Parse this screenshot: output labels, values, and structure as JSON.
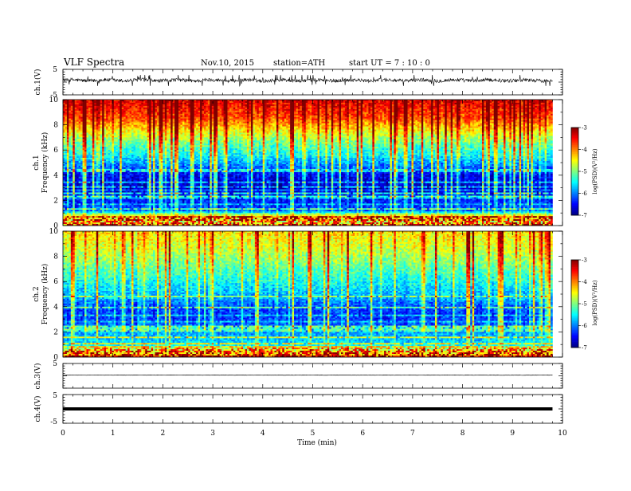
{
  "header": {
    "title": "VLF  Spectra",
    "date": "Nov.10, 2015",
    "station": "station=ATH",
    "start": "start  UT  =   7  : 10 : 0"
  },
  "chart_data": [
    {
      "type": "line",
      "name": "ch1-waveform",
      "ylabel": "ch.1(V)",
      "ylim": [
        -5,
        5
      ],
      "yticks": [
        "5",
        "-5"
      ],
      "xlim": [
        0,
        10
      ],
      "data_extent_min": 9.8,
      "mean_level_V": 0.7,
      "noise_amplitude_V": [
        -1.5,
        2.8
      ],
      "line_color": "#000000"
    },
    {
      "type": "heatmap",
      "name": "ch1-spectrogram",
      "ylabel_top": "ch.1",
      "ylabel": "Frequency  (kHz)",
      "ylim": [
        0,
        10
      ],
      "yticks": [
        "0",
        "2",
        "4",
        "6",
        "8",
        "10"
      ],
      "xlim": [
        0,
        10
      ],
      "data_extent_min": 9.8,
      "colorbar": {
        "label": "log(PSD)(V²/Hz)",
        "range": [
          -7,
          -3
        ],
        "ticks": [
          "-3",
          "-4",
          "-5",
          "-6",
          "-7"
        ]
      },
      "profile_kHz_logPSD": [
        [
          0,
          -4.3
        ],
        [
          0.4,
          -5.0
        ],
        [
          0.7,
          -4.1
        ],
        [
          1.2,
          -6.2
        ],
        [
          2.0,
          -6.4
        ],
        [
          3.0,
          -6.7
        ],
        [
          4.0,
          -6.5
        ],
        [
          4.8,
          -6.0
        ],
        [
          5.5,
          -5.5
        ],
        [
          6.5,
          -5.1
        ],
        [
          7.5,
          -4.5
        ],
        [
          8.5,
          -3.8
        ],
        [
          10,
          -3.4
        ]
      ]
    },
    {
      "type": "heatmap",
      "name": "ch2-spectrogram",
      "ylabel_top": "ch.2",
      "ylabel": "Frequency  (kHz)",
      "ylim": [
        0,
        10
      ],
      "yticks": [
        "0",
        "2",
        "4",
        "6",
        "8",
        "10"
      ],
      "xlim": [
        0,
        10
      ],
      "data_extent_min": 9.8,
      "colorbar": {
        "label": "log(PSD)(V²/Hz)",
        "range": [
          -7,
          -3
        ],
        "ticks": [
          "-3",
          "-4",
          "-5",
          "-6",
          "-7"
        ]
      },
      "profile_kHz_logPSD": [
        [
          0,
          -4.2
        ],
        [
          0.5,
          -4.6
        ],
        [
          1.0,
          -5.6
        ],
        [
          2.0,
          -5.9
        ],
        [
          3.0,
          -6.3
        ],
        [
          4.0,
          -6.2
        ],
        [
          4.7,
          -5.8
        ],
        [
          5.5,
          -5.6
        ],
        [
          6.5,
          -5.3
        ],
        [
          7.5,
          -5.0
        ],
        [
          8.5,
          -4.7
        ],
        [
          10,
          -4.4
        ]
      ]
    },
    {
      "type": "line",
      "name": "ch3-waveform",
      "ylabel": "ch.3(V)",
      "ylim": [
        -5,
        5
      ],
      "yticks": [
        "5"
      ],
      "xlim": [
        0,
        10
      ],
      "data_extent_min": 9.8,
      "mean_level_V": 0.3,
      "line_color": "#000000"
    },
    {
      "type": "line",
      "name": "ch4-waveform",
      "ylabel": "ch.4(V)",
      "ylim": [
        -5,
        5
      ],
      "yticks": [
        "5",
        "-5"
      ],
      "xlim": [
        0,
        10
      ],
      "data_extent_min": 9.8,
      "mean_level_V": 0.0,
      "line_color": "#000000"
    }
  ],
  "x_axis": {
    "label": "Time  (min)",
    "ticks": [
      "0",
      "1",
      "2",
      "3",
      "4",
      "5",
      "6",
      "7",
      "8",
      "9",
      "10"
    ]
  }
}
